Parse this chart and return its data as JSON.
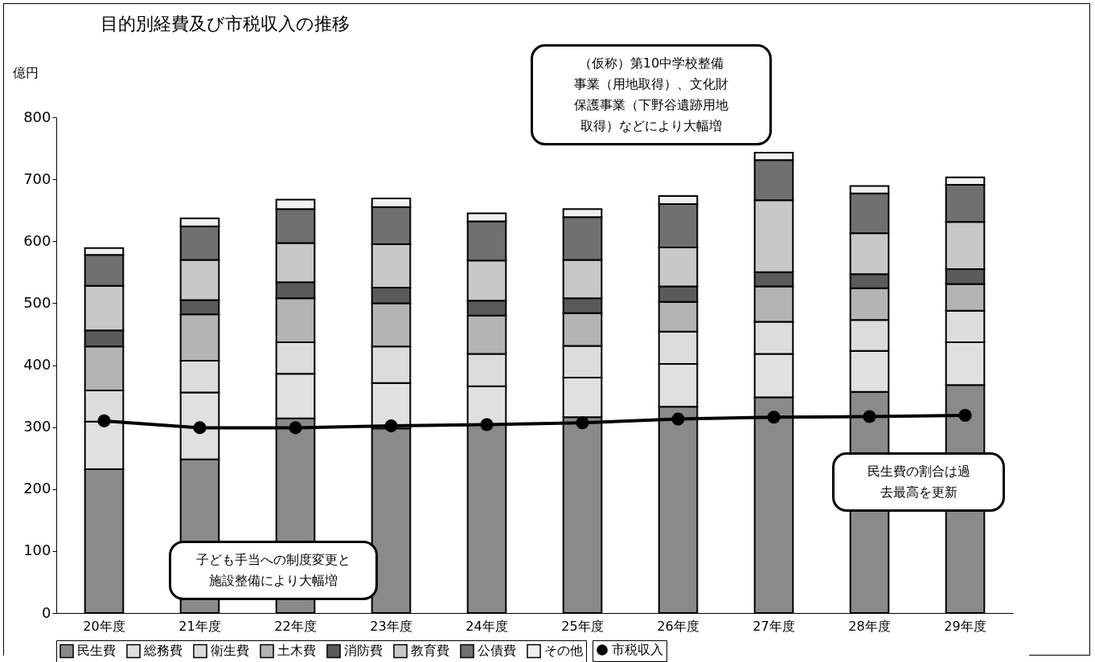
{
  "chart_data": {
    "type": "bar",
    "stacked": true,
    "title": "目的別経費及び市税収入の推移",
    "ylabel": "億円",
    "categories": [
      "20年度",
      "21年度",
      "22年度",
      "23年度",
      "24年度",
      "25年度",
      "26年度",
      "27年度",
      "28年度",
      "29年度"
    ],
    "series": [
      {
        "name": "民生費",
        "color": "#8a8a8a",
        "values": [
          232,
          248,
          314,
          298,
          304,
          316,
          333,
          348,
          357,
          368
        ]
      },
      {
        "name": "総務費",
        "color": "#e0e0e0",
        "values": [
          77,
          108,
          72,
          73,
          62,
          64,
          69,
          70,
          66,
          69
        ]
      },
      {
        "name": "衛生費",
        "color": "#dcdcdc",
        "values": [
          50,
          51,
          51,
          59,
          52,
          51,
          52,
          52,
          50,
          51
        ]
      },
      {
        "name": "土木費",
        "color": "#b4b4b4",
        "values": [
          71,
          75,
          71,
          70,
          62,
          53,
          48,
          57,
          51,
          43
        ]
      },
      {
        "name": "消防費",
        "color": "#5a5a5a",
        "values": [
          26,
          23,
          26,
          25,
          24,
          24,
          25,
          23,
          23,
          24
        ]
      },
      {
        "name": "教育費",
        "color": "#c8c8c8",
        "values": [
          72,
          65,
          63,
          70,
          65,
          62,
          63,
          116,
          66,
          76
        ]
      },
      {
        "name": "公債費",
        "color": "#707070",
        "values": [
          50,
          54,
          55,
          60,
          63,
          69,
          70,
          65,
          64,
          60
        ]
      },
      {
        "name": "その他",
        "color": "#f0f0f0",
        "values": [
          11,
          13,
          15,
          14,
          13,
          13,
          13,
          12,
          12,
          12
        ]
      },
      {
        "name": "市税収入",
        "type": "line",
        "color": "#000000",
        "marker": "circle",
        "line_style": "solid",
        "values": [
          310,
          299,
          299,
          302,
          304,
          307,
          313,
          316,
          317,
          319
        ]
      }
    ],
    "ylim": [
      0,
      800
    ],
    "yticks": [
      0,
      100,
      200,
      300,
      400,
      500,
      600,
      700,
      800
    ],
    "grid": false,
    "legend": "bottom",
    "annotations": [
      "（仮称）第10中学校整備事業（用地取得）、文化財保護事業（下野谷遺跡用地取得）などにより大幅増",
      "子ども手当への制度変更と施設整備により大幅増",
      "民生費の割合は過去最高を更新"
    ]
  }
}
